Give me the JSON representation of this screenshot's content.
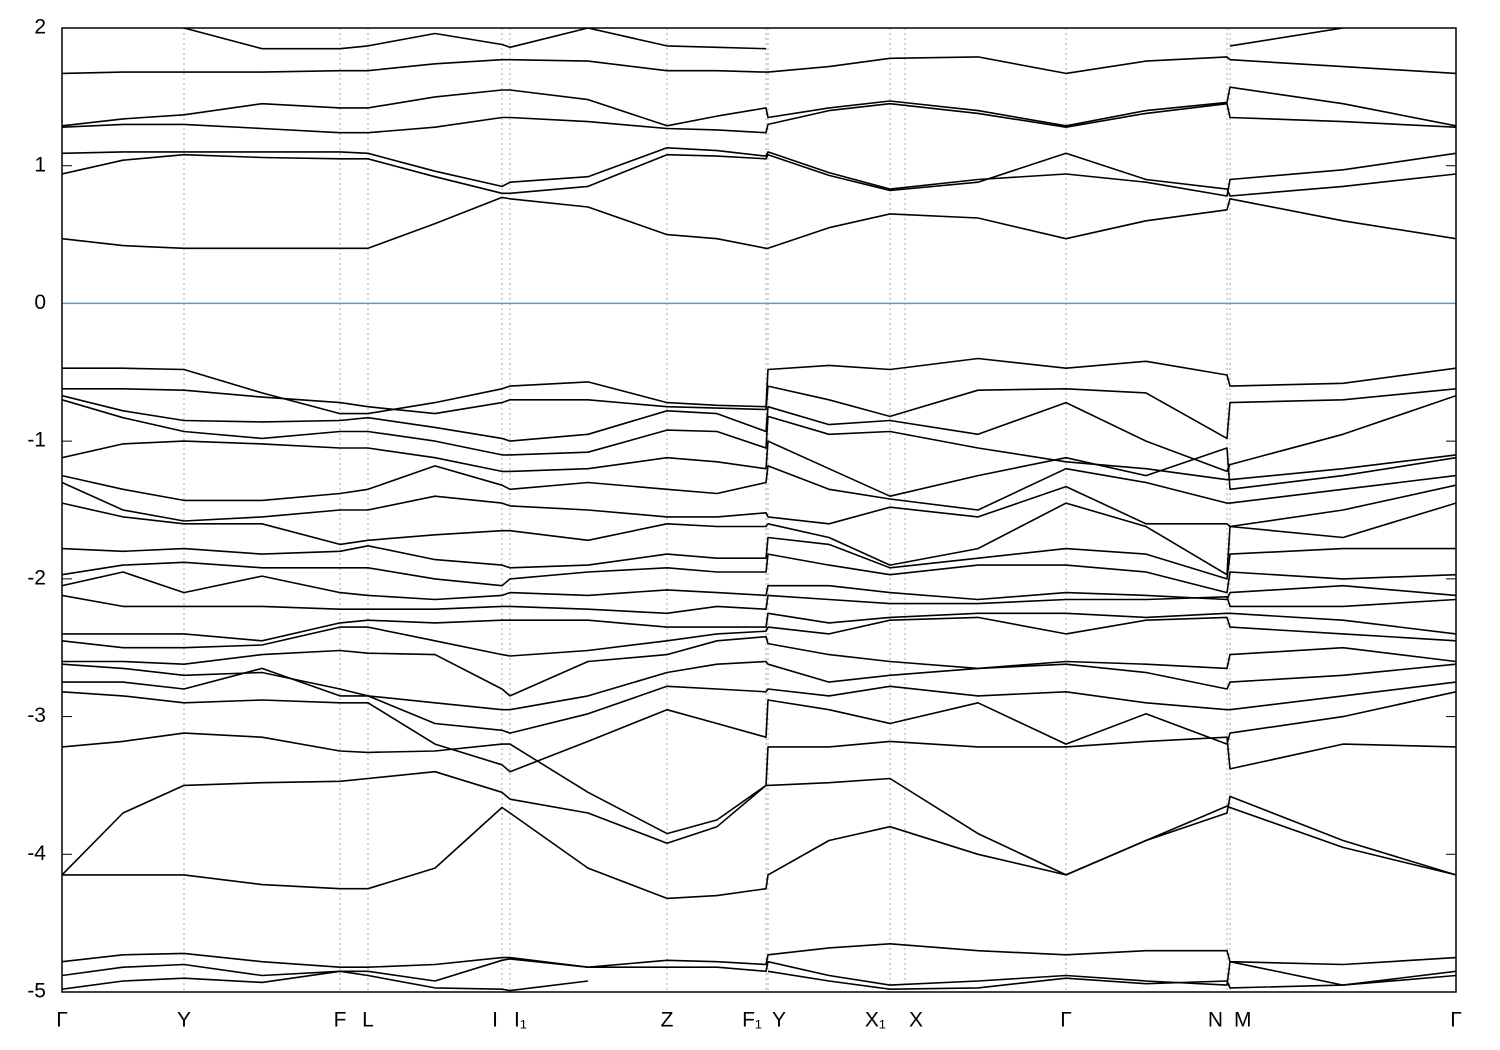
{
  "chart_data": {
    "type": "line",
    "x": [
      0,
      61,
      122,
      200,
      278,
      306,
      373,
      440,
      448,
      526,
      605,
      655,
      704,
      706,
      767,
      828,
      916,
      1004,
      1084,
      1165,
      1168,
      1281,
      1394
    ],
    "xlim": [
      0,
      1394
    ],
    "xticks": [
      {
        "value": 0,
        "label": "Γ"
      },
      {
        "value": 122,
        "label": "Y"
      },
      {
        "value": 278,
        "label": "F"
      },
      {
        "value": 306,
        "label": "L"
      },
      {
        "value": 440,
        "label": "I"
      },
      {
        "value": 448,
        "label": "I₁"
      },
      {
        "value": 605,
        "label": "Z"
      },
      {
        "value": 704,
        "label": "F₁"
      },
      {
        "value": 706,
        "label": "Y"
      },
      {
        "value": 828,
        "label": "X₁"
      },
      {
        "value": 843,
        "label": "X"
      },
      {
        "value": 1004,
        "label": "Γ"
      },
      {
        "value": 1165,
        "label": "N"
      },
      {
        "value": 1168,
        "label": "M"
      },
      {
        "value": 1394,
        "label": "Γ"
      }
    ],
    "ylim": [
      -5,
      2
    ],
    "yticks": [
      2,
      1,
      0,
      -1,
      -2,
      -3,
      -4,
      -5
    ],
    "grid": true,
    "color": "#000000",
    "hline": {
      "value": 0,
      "color": "#4aa3c3"
    },
    "series": [
      {
        "values": [
          0.47,
          0.42,
          0.4,
          0.4,
          0.4,
          0.4,
          0.58,
          0.77,
          0.76,
          0.7,
          0.5,
          0.47,
          0.4,
          0.4,
          0.55,
          0.65,
          0.62,
          0.47,
          0.6,
          0.68,
          0.76,
          0.6,
          0.47
        ]
      },
      {
        "values": [
          0.94,
          1.04,
          1.08,
          1.06,
          1.05,
          1.05,
          0.92,
          0.8,
          0.8,
          0.85,
          1.08,
          1.07,
          1.05,
          1.08,
          0.93,
          0.82,
          0.88,
          1.09,
          0.9,
          0.83,
          0.78,
          0.85,
          0.94
        ]
      },
      {
        "values": [
          1.09,
          1.1,
          1.1,
          1.1,
          1.1,
          1.09,
          0.96,
          0.85,
          0.88,
          0.92,
          1.13,
          1.11,
          1.07,
          1.1,
          0.95,
          0.83,
          0.9,
          0.94,
          0.88,
          0.78,
          0.9,
          0.97,
          1.09
        ]
      },
      {
        "values": [
          1.28,
          1.3,
          1.3,
          1.27,
          1.24,
          1.24,
          1.28,
          1.35,
          1.35,
          1.32,
          1.27,
          1.26,
          1.24,
          1.3,
          1.4,
          1.45,
          1.38,
          1.28,
          1.38,
          1.45,
          1.35,
          1.32,
          1.28
        ]
      },
      {
        "values": [
          1.29,
          1.34,
          1.37,
          1.45,
          1.42,
          1.42,
          1.5,
          1.55,
          1.55,
          1.48,
          1.29,
          1.36,
          1.42,
          1.35,
          1.42,
          1.47,
          1.4,
          1.29,
          1.4,
          1.46,
          1.57,
          1.45,
          1.29
        ]
      },
      {
        "values": [
          1.67,
          1.68,
          1.68,
          1.68,
          1.69,
          1.69,
          1.74,
          1.77,
          1.77,
          1.76,
          1.69,
          1.69,
          1.68,
          1.68,
          1.72,
          1.78,
          1.79,
          1.67,
          1.76,
          1.79,
          1.77,
          1.72,
          1.67
        ]
      },
      {
        "values": [
          null,
          null,
          2.0,
          1.85,
          1.85,
          1.87,
          1.96,
          1.88,
          1.86,
          2.0,
          1.87,
          1.86,
          1.85,
          null,
          null,
          null,
          null,
          null,
          null,
          null,
          1.87,
          2.0,
          null
        ]
      },
      {
        "values": [
          -0.47,
          -0.47,
          -0.48,
          -0.65,
          -0.8,
          -0.8,
          -0.72,
          -0.62,
          -0.6,
          -0.57,
          -0.72,
          -0.74,
          -0.75,
          -0.48,
          -0.45,
          -0.48,
          -0.4,
          -0.47,
          -0.42,
          -0.52,
          -0.6,
          -0.58,
          -0.47
        ]
      },
      {
        "values": [
          -0.62,
          -0.62,
          -0.63,
          -0.68,
          -0.72,
          -0.75,
          -0.8,
          -0.72,
          -0.7,
          -0.7,
          -0.75,
          -0.76,
          -0.77,
          -0.6,
          -0.7,
          -0.82,
          -0.63,
          -0.62,
          -0.65,
          -0.98,
          -0.72,
          -0.7,
          -0.62
        ]
      },
      {
        "values": [
          -0.67,
          -0.78,
          -0.85,
          -0.86,
          -0.85,
          -0.83,
          -0.9,
          -0.98,
          -1.0,
          -0.95,
          -0.78,
          -0.8,
          -0.93,
          -0.75,
          -0.88,
          -0.85,
          -0.95,
          -0.72,
          -1.0,
          -1.22,
          -1.17,
          -0.95,
          -0.67
        ]
      },
      {
        "values": [
          -0.7,
          -0.83,
          -0.93,
          -0.98,
          -0.93,
          -0.93,
          -1.0,
          -1.1,
          -1.1,
          -1.08,
          -0.92,
          -0.93,
          -1.05,
          -0.82,
          -0.95,
          -0.93,
          -1.05,
          -1.15,
          -1.2,
          -1.28,
          -1.28,
          -1.2,
          -1.1
        ]
      },
      {
        "values": [
          -1.12,
          -1.02,
          -1.0,
          -1.02,
          -1.05,
          -1.05,
          -1.12,
          -1.22,
          -1.22,
          -1.2,
          -1.12,
          -1.15,
          -1.2,
          -1.0,
          -1.2,
          -1.4,
          -1.25,
          -1.12,
          -1.25,
          -1.05,
          -1.35,
          -1.25,
          -1.12
        ]
      },
      {
        "values": [
          -1.25,
          -1.35,
          -1.43,
          -1.43,
          -1.38,
          -1.35,
          -1.18,
          -1.32,
          -1.35,
          -1.3,
          -1.35,
          -1.38,
          -1.3,
          -1.18,
          -1.35,
          -1.42,
          -1.5,
          -1.2,
          -1.3,
          -1.45,
          -1.45,
          -1.35,
          -1.25
        ]
      },
      {
        "values": [
          -1.3,
          -1.5,
          -1.58,
          -1.55,
          -1.5,
          -1.5,
          -1.4,
          -1.45,
          -1.47,
          -1.5,
          -1.55,
          -1.55,
          -1.52,
          -1.55,
          -1.6,
          -1.48,
          -1.55,
          -1.33,
          -1.6,
          -1.6,
          -1.62,
          -1.5,
          -1.32
        ]
      },
      {
        "values": [
          -1.45,
          -1.55,
          -1.6,
          -1.6,
          -1.75,
          -1.72,
          -1.68,
          -1.65,
          -1.65,
          -1.72,
          -1.6,
          -1.62,
          -1.62,
          -1.6,
          -1.7,
          -1.9,
          -1.78,
          -1.45,
          -1.62,
          -1.97,
          -1.62,
          -1.7,
          -1.45
        ]
      },
      {
        "values": [
          -1.78,
          -1.8,
          -1.78,
          -1.82,
          -1.8,
          -1.76,
          -1.86,
          -1.9,
          -1.92,
          -1.9,
          -1.82,
          -1.85,
          -1.85,
          -1.7,
          -1.75,
          -1.92,
          -1.85,
          -1.78,
          -1.82,
          -2.0,
          -1.82,
          -1.78,
          -1.78
        ]
      },
      {
        "values": [
          -1.97,
          -1.9,
          -1.88,
          -1.92,
          -1.92,
          -1.92,
          -2.0,
          -2.05,
          -2.0,
          -1.95,
          -1.92,
          -1.95,
          -1.95,
          -1.82,
          -1.9,
          -1.97,
          -1.9,
          -1.9,
          -1.95,
          -2.1,
          -1.95,
          -2.0,
          -1.97
        ]
      },
      {
        "values": [
          -2.05,
          -1.95,
          -2.1,
          -1.98,
          -2.1,
          -2.12,
          -2.15,
          -2.12,
          -2.1,
          -2.12,
          -2.08,
          -2.1,
          -2.12,
          -2.05,
          -2.05,
          -2.1,
          -2.15,
          -2.1,
          -2.12,
          -2.15,
          -2.1,
          -2.05,
          -2.12
        ]
      },
      {
        "values": [
          -2.12,
          -2.2,
          -2.2,
          -2.2,
          -2.22,
          -2.22,
          -2.22,
          -2.2,
          -2.2,
          -2.22,
          -2.25,
          -2.2,
          -2.22,
          -2.12,
          -2.15,
          -2.18,
          -2.18,
          -2.15,
          -2.15,
          -2.13,
          -2.2,
          -2.2,
          -2.15
        ]
      },
      {
        "values": [
          -2.4,
          -2.4,
          -2.4,
          -2.45,
          -2.32,
          -2.3,
          -2.32,
          -2.3,
          -2.3,
          -2.3,
          -2.35,
          -2.35,
          -2.35,
          -2.25,
          -2.32,
          -2.28,
          -2.25,
          -2.25,
          -2.28,
          -2.25,
          -2.25,
          -2.3,
          -2.4
        ]
      },
      {
        "values": [
          -2.45,
          -2.5,
          -2.5,
          -2.48,
          -2.35,
          -2.35,
          -2.45,
          -2.55,
          -2.56,
          -2.52,
          -2.45,
          -2.4,
          -2.38,
          -2.35,
          -2.4,
          -2.3,
          -2.28,
          -2.4,
          -2.3,
          -2.28,
          -2.35,
          -2.4,
          -2.45
        ]
      },
      {
        "values": [
          -2.6,
          -2.6,
          -2.62,
          -2.55,
          -2.52,
          -2.54,
          -2.55,
          -2.8,
          -2.85,
          -2.6,
          -2.55,
          -2.45,
          -2.42,
          -2.47,
          -2.55,
          -2.6,
          -2.65,
          -2.6,
          -2.62,
          -2.65,
          -2.55,
          -2.5,
          -2.6
        ]
      },
      {
        "values": [
          -2.62,
          -2.65,
          -2.7,
          -2.68,
          -2.8,
          -2.85,
          -2.9,
          -2.95,
          -2.95,
          -2.85,
          -2.68,
          -2.62,
          -2.6,
          -2.62,
          -2.75,
          -2.7,
          -2.65,
          -2.62,
          -2.68,
          -2.8,
          -2.75,
          -2.7,
          -2.62
        ]
      },
      {
        "values": [
          -2.75,
          -2.75,
          -2.8,
          -2.65,
          -2.85,
          -2.85,
          -3.05,
          -3.1,
          -3.12,
          -2.98,
          -2.78,
          -2.8,
          -2.82,
          -2.8,
          -2.85,
          -2.78,
          -2.85,
          -2.82,
          -2.9,
          -2.95,
          -2.95,
          -2.85,
          -2.75
        ]
      },
      {
        "values": [
          -2.82,
          -2.85,
          -2.9,
          -2.88,
          -2.9,
          -2.9,
          -3.2,
          -3.35,
          -3.4,
          -3.18,
          -2.95,
          -3.05,
          -3.15,
          -2.88,
          -2.95,
          -3.05,
          -2.9,
          -3.2,
          -2.98,
          -3.2,
          -3.12,
          -3.0,
          -2.82
        ]
      },
      {
        "values": [
          -3.22,
          -3.18,
          -3.12,
          -3.15,
          -3.25,
          -3.26,
          -3.25,
          -3.2,
          -3.2,
          -3.55,
          -3.85,
          -3.75,
          -3.5,
          -3.22,
          -3.22,
          -3.18,
          -3.22,
          -3.22,
          -3.18,
          -3.15,
          -3.38,
          -3.2,
          -3.22
        ]
      },
      {
        "values": [
          -4.15,
          -3.7,
          -3.5,
          -3.48,
          -3.47,
          -3.45,
          -3.4,
          -3.55,
          -3.6,
          -3.7,
          -3.92,
          -3.8,
          -3.5,
          -3.5,
          -3.48,
          -3.45,
          -3.85,
          -4.15,
          -3.9,
          -3.7,
          -3.58,
          -3.9,
          -4.15
        ]
      },
      {
        "values": [
          -4.15,
          -4.15,
          -4.15,
          -4.22,
          -4.25,
          -4.25,
          -4.1,
          -3.66,
          -3.7,
          -4.1,
          -4.32,
          -4.3,
          -4.25,
          -4.15,
          -3.9,
          -3.8,
          -4.0,
          -4.15,
          -3.9,
          -3.65,
          -3.66,
          -3.95,
          -4.15
        ]
      },
      {
        "values": [
          -4.78,
          -4.73,
          -4.72,
          -4.78,
          -4.82,
          -4.82,
          -4.8,
          -4.75,
          -4.75,
          -4.82,
          -4.77,
          -4.78,
          -4.8,
          -4.73,
          -4.68,
          -4.65,
          -4.7,
          -4.73,
          -4.7,
          -4.7,
          -4.78,
          -4.8,
          -4.75
        ]
      },
      {
        "values": [
          -4.88,
          -4.82,
          -4.8,
          -4.88,
          -4.85,
          -4.85,
          -4.92,
          -4.77,
          -4.76,
          -4.82,
          -4.82,
          -4.82,
          -4.85,
          -4.78,
          -4.88,
          -4.95,
          -4.92,
          -4.88,
          -4.92,
          -4.95,
          -4.78,
          -4.95,
          -4.85
        ]
      },
      {
        "values": [
          -4.98,
          -4.92,
          -4.9,
          -4.93,
          -4.85,
          -4.88,
          -4.97,
          -4.98,
          -4.99,
          -4.92,
          null,
          null,
          null,
          -4.85,
          -4.92,
          -4.98,
          -4.97,
          -4.9,
          -4.94,
          -4.92,
          -4.97,
          -4.95,
          -4.88
        ]
      }
    ]
  }
}
